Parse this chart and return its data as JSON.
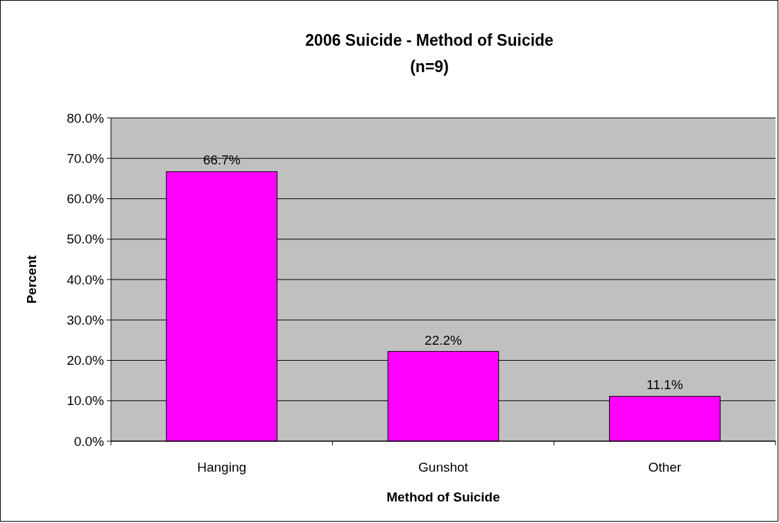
{
  "chart_data": {
    "type": "bar",
    "title": "2006 Suicide - Method of Suicide",
    "subtitle": "(n=9)",
    "xlabel": "Method of Suicide",
    "ylabel": "Percent",
    "categories": [
      "Hanging",
      "Gunshot",
      "Other"
    ],
    "values": [
      66.7,
      22.2,
      11.1
    ],
    "value_labels": [
      "66.7%",
      "22.2%",
      "11.1%"
    ],
    "color": "#ff00ff",
    "ylim": [
      0,
      80
    ],
    "yticks": [
      {
        "value": 0,
        "label": "0.0%"
      },
      {
        "value": 10,
        "label": "10.0%"
      },
      {
        "value": 20,
        "label": "20.0%"
      },
      {
        "value": 30,
        "label": "30.0%"
      },
      {
        "value": 40,
        "label": "40.0%"
      },
      {
        "value": 50,
        "label": "50.0%"
      },
      {
        "value": 60,
        "label": "60.0%"
      },
      {
        "value": 70,
        "label": "70.0%"
      },
      {
        "value": 80,
        "label": "80.0%"
      }
    ],
    "grid": "y"
  }
}
